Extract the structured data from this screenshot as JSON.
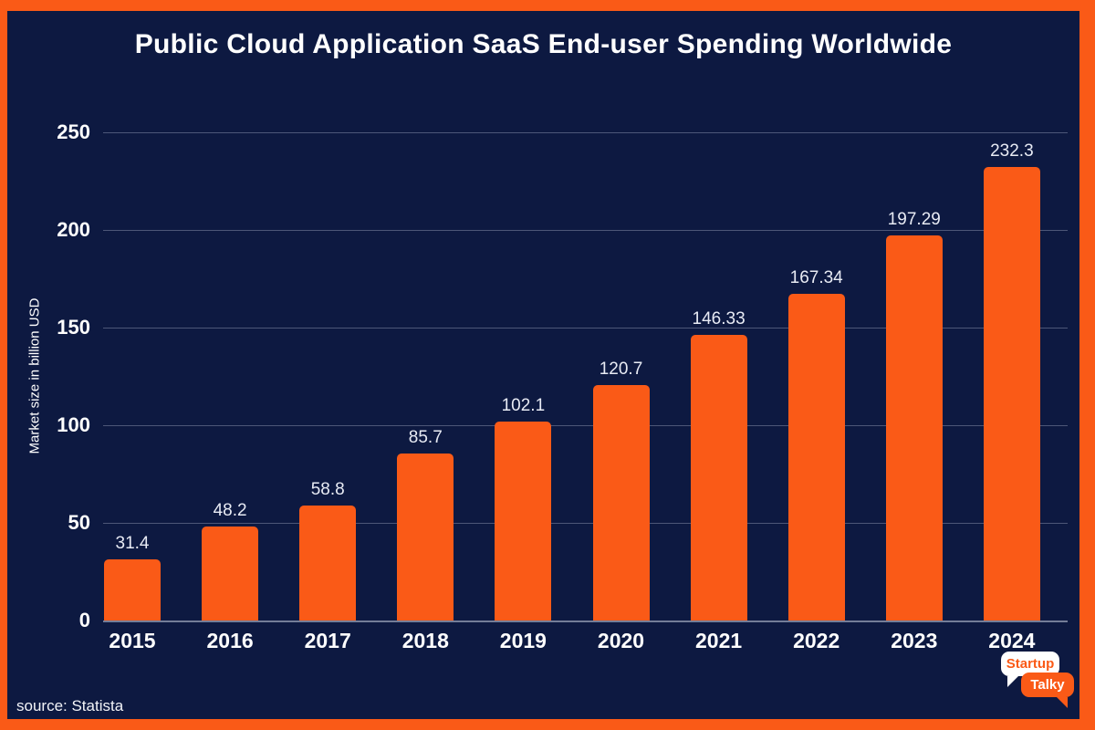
{
  "title": "Public Cloud Application SaaS End-user Spending Worldwide",
  "source": "source: Statista",
  "logo": {
    "line1": "Startup",
    "line2": "Talky"
  },
  "colors": {
    "background": "#0d1941",
    "accent_orange": "#fa5a17",
    "text": "#ffffff",
    "gridline": "rgba(215,221,236,0.32)"
  },
  "chart_data": {
    "type": "bar",
    "title": "Public Cloud Application SaaS End-user Spending Worldwide",
    "categories": [
      "2015",
      "2016",
      "2017",
      "2018",
      "2019",
      "2020",
      "2021",
      "2022",
      "2023",
      "2024"
    ],
    "values": [
      31.4,
      48.2,
      58.8,
      85.7,
      102.1,
      120.7,
      146.33,
      167.34,
      197.29,
      232.3
    ],
    "value_labels": [
      "31.4",
      "48.2",
      "58.8",
      "85.7",
      "102.1",
      "120.7",
      "146.33",
      "167.34",
      "197.29",
      "232.3"
    ],
    "xlabel": "",
    "ylabel": "Market size in billion USD",
    "ylim": [
      0,
      250
    ],
    "yticks": [
      0,
      50,
      100,
      150,
      200,
      250
    ],
    "grid": "horizontal",
    "legend": "none",
    "bar_color": "#fa5a17"
  }
}
